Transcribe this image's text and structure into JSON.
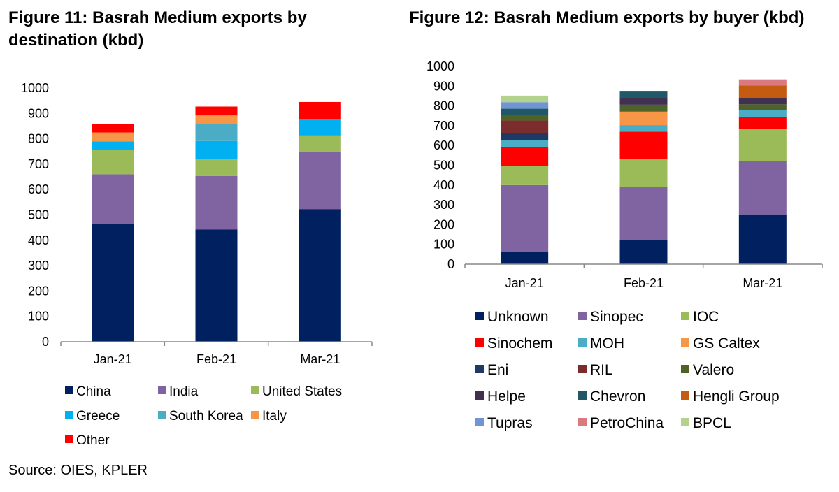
{
  "figures": {
    "left_title": "Figure 11: Basrah Medium exports by destination (kbd)",
    "right_title": "Figure 12: Basrah Medium exports by buyer (kbd)"
  },
  "source": "Source: OIES, KPLER",
  "chart_data": [
    {
      "type": "bar",
      "stacked": true,
      "title": "Figure 11: Basrah Medium exports by destination (kbd)",
      "categories": [
        "Jan-21",
        "Feb-21",
        "Mar-21"
      ],
      "ylim": [
        0,
        1000
      ],
      "yticks": [
        0,
        100,
        200,
        300,
        400,
        500,
        600,
        700,
        800,
        900,
        1000
      ],
      "grid": false,
      "legend_position": "bottom",
      "series": [
        {
          "name": "China",
          "color": "#002060",
          "values": [
            465,
            443,
            523
          ]
        },
        {
          "name": "India",
          "color": "#8064A2",
          "values": [
            195,
            210,
            225
          ]
        },
        {
          "name": "United States",
          "color": "#9BBB59",
          "values": [
            97,
            68,
            65
          ]
        },
        {
          "name": "Greece",
          "color": "#00B0F0",
          "values": [
            33,
            70,
            65
          ]
        },
        {
          "name": "South Korea",
          "color": "#4BACC6",
          "values": [
            0,
            68,
            0
          ]
        },
        {
          "name": "Italy",
          "color": "#F79646",
          "values": [
            35,
            33,
            0
          ]
        },
        {
          "name": "Other",
          "color": "#FF0000",
          "values": [
            32,
            35,
            67
          ]
        }
      ]
    },
    {
      "type": "bar",
      "stacked": true,
      "title": "Figure 12: Basrah Medium exports by buyer (kbd)",
      "categories": [
        "Jan-21",
        "Feb-21",
        "Mar-21"
      ],
      "ylim": [
        0,
        1000
      ],
      "yticks": [
        0,
        100,
        200,
        300,
        400,
        500,
        600,
        700,
        800,
        900,
        1000
      ],
      "grid": false,
      "legend_position": "bottom",
      "series": [
        {
          "name": "Unknown",
          "color": "#002060",
          "values": [
            62,
            122,
            252
          ]
        },
        {
          "name": "Sinopec",
          "color": "#8064A2",
          "values": [
            338,
            268,
            270
          ]
        },
        {
          "name": "IOC",
          "color": "#9BBB59",
          "values": [
            98,
            140,
            160
          ]
        },
        {
          "name": "Sinochem",
          "color": "#FF0000",
          "values": [
            95,
            140,
            63
          ]
        },
        {
          "name": "MOH",
          "color": "#4BACC6",
          "values": [
            35,
            33,
            33
          ]
        },
        {
          "name": "GS Caltex",
          "color": "#F79646",
          "values": [
            0,
            68,
            0
          ]
        },
        {
          "name": "Eni",
          "color": "#1F3864",
          "values": [
            33,
            0,
            0
          ]
        },
        {
          "name": "RIL",
          "color": "#7B2C2C",
          "values": [
            65,
            0,
            0
          ]
        },
        {
          "name": "Valero",
          "color": "#4F6228",
          "values": [
            30,
            35,
            30
          ]
        },
        {
          "name": "Helpe",
          "color": "#403151",
          "values": [
            0,
            35,
            33
          ]
        },
        {
          "name": "Chevron",
          "color": "#215868",
          "values": [
            30,
            35,
            0
          ]
        },
        {
          "name": "Hengli Group",
          "color": "#C55A11",
          "values": [
            0,
            0,
            63
          ]
        },
        {
          "name": "Tupras",
          "color": "#7095D2",
          "values": [
            33,
            0,
            0
          ]
        },
        {
          "name": "PetroChina",
          "color": "#DA7A7E",
          "values": [
            0,
            0,
            30
          ]
        },
        {
          "name": "BPCL",
          "color": "#B3D28B",
          "values": [
            33,
            0,
            0
          ]
        }
      ]
    }
  ]
}
